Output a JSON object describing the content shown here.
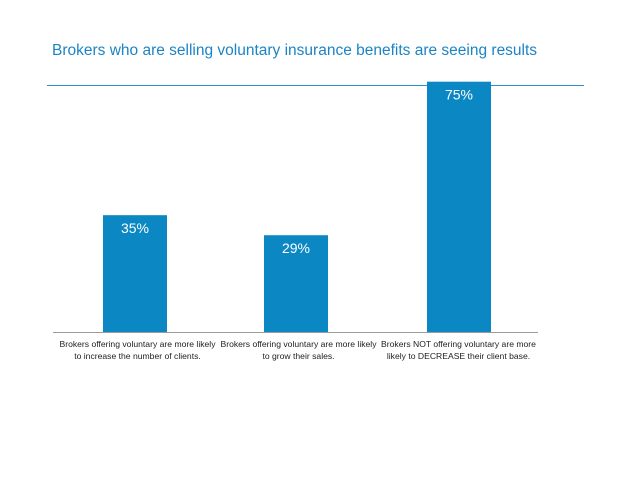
{
  "header": {
    "title": "Brokers who are selling voluntary insurance benefits are seeing results"
  },
  "colors": {
    "title": "#1b84c4",
    "bar": "#0b87c3",
    "rule": "#2f8ccc"
  },
  "chart_data": {
    "type": "bar",
    "title": "",
    "xlabel": "",
    "ylabel": "",
    "grid": false,
    "ylim": [
      0,
      80
    ],
    "categories": [
      "Brokers offering voluntary are more likely to increase the number of clients.",
      "Brokers offering voluntary are more likely to grow their sales.",
      "Brokers NOT offering voluntary are more likely to DECREASE their client base."
    ],
    "values": [
      35,
      29,
      75
    ],
    "value_labels": [
      "35%",
      "29%",
      "75%"
    ]
  }
}
